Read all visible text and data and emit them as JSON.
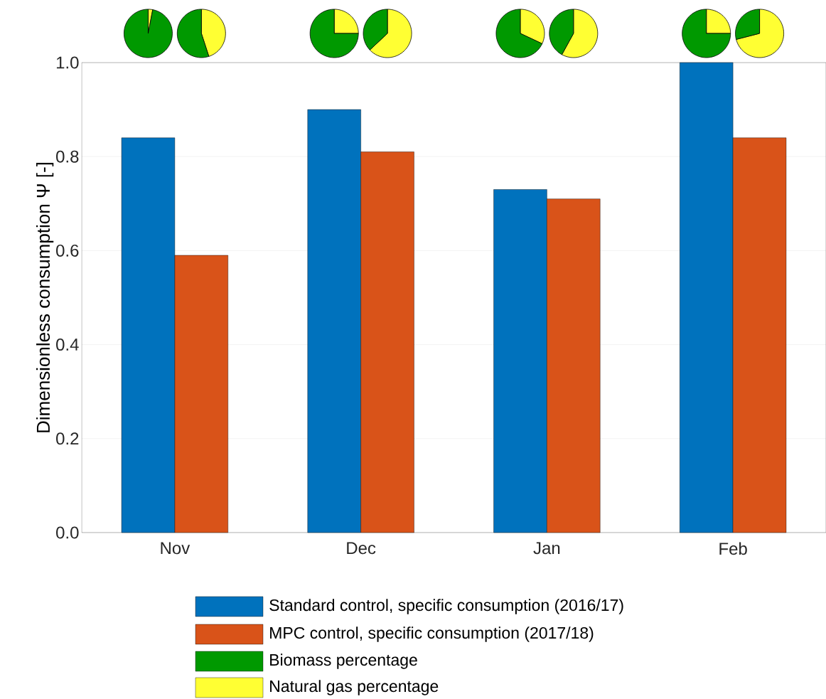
{
  "chart_data": [
    {
      "type": "bar",
      "ylabel": "Dimensionless consumption Ψ [-]",
      "categories": [
        "Nov",
        "Dec",
        "Jan",
        "Feb"
      ],
      "series": [
        {
          "name": "Standard control, specific consumption (2016/17)",
          "color": "#0072bd",
          "values": [
            0.84,
            0.9,
            0.73,
            1.0
          ]
        },
        {
          "name": "MPC control, specific consumption (2017/18)",
          "color": "#d95319",
          "values": [
            0.59,
            0.81,
            0.71,
            0.84
          ]
        }
      ],
      "ylim": [
        0,
        1.0
      ],
      "yticks": [
        {
          "value": 0,
          "label": "0.0"
        },
        0.2,
        0.4,
        0.6,
        0.8,
        {
          "value": 1.0,
          "label": "1.0"
        }
      ],
      "grid": "y",
      "legend": "bottom"
    },
    {
      "type": "pie",
      "categories": [
        "Biomass percentage",
        "Natural gas percentage"
      ],
      "values": [
        97,
        3
      ],
      "colors": [
        "#009900",
        "#ffff33"
      ],
      "legend": "bottom"
    },
    {
      "type": "pie",
      "categories": [
        null,
        null
      ],
      "values": [
        55,
        45
      ],
      "colors": [
        "#009900",
        "#ffff33"
      ]
    },
    {
      "type": "pie",
      "categories": [
        null,
        null
      ],
      "values": [
        75,
        25
      ],
      "colors": [
        "#009900",
        "#ffff33"
      ]
    },
    {
      "type": "pie",
      "categories": [
        null,
        null
      ],
      "values": [
        37,
        63
      ],
      "colors": [
        "#009900",
        "#ffff33"
      ]
    },
    {
      "type": "pie",
      "categories": [
        null,
        null
      ],
      "values": [
        68,
        32
      ],
      "colors": [
        "#009900",
        "#ffff33"
      ]
    },
    {
      "type": "pie",
      "categories": [
        null,
        null
      ],
      "values": [
        42,
        58
      ],
      "colors": [
        "#009900",
        "#ffff33"
      ]
    },
    {
      "type": "pie",
      "categories": [
        null,
        null
      ],
      "values": [
        75,
        25
      ],
      "colors": [
        "#009900",
        "#ffff33"
      ]
    },
    {
      "type": "pie",
      "categories": [
        null,
        null
      ],
      "values": [
        29,
        71
      ],
      "colors": [
        "#009900",
        "#ffff33"
      ]
    }
  ]
}
